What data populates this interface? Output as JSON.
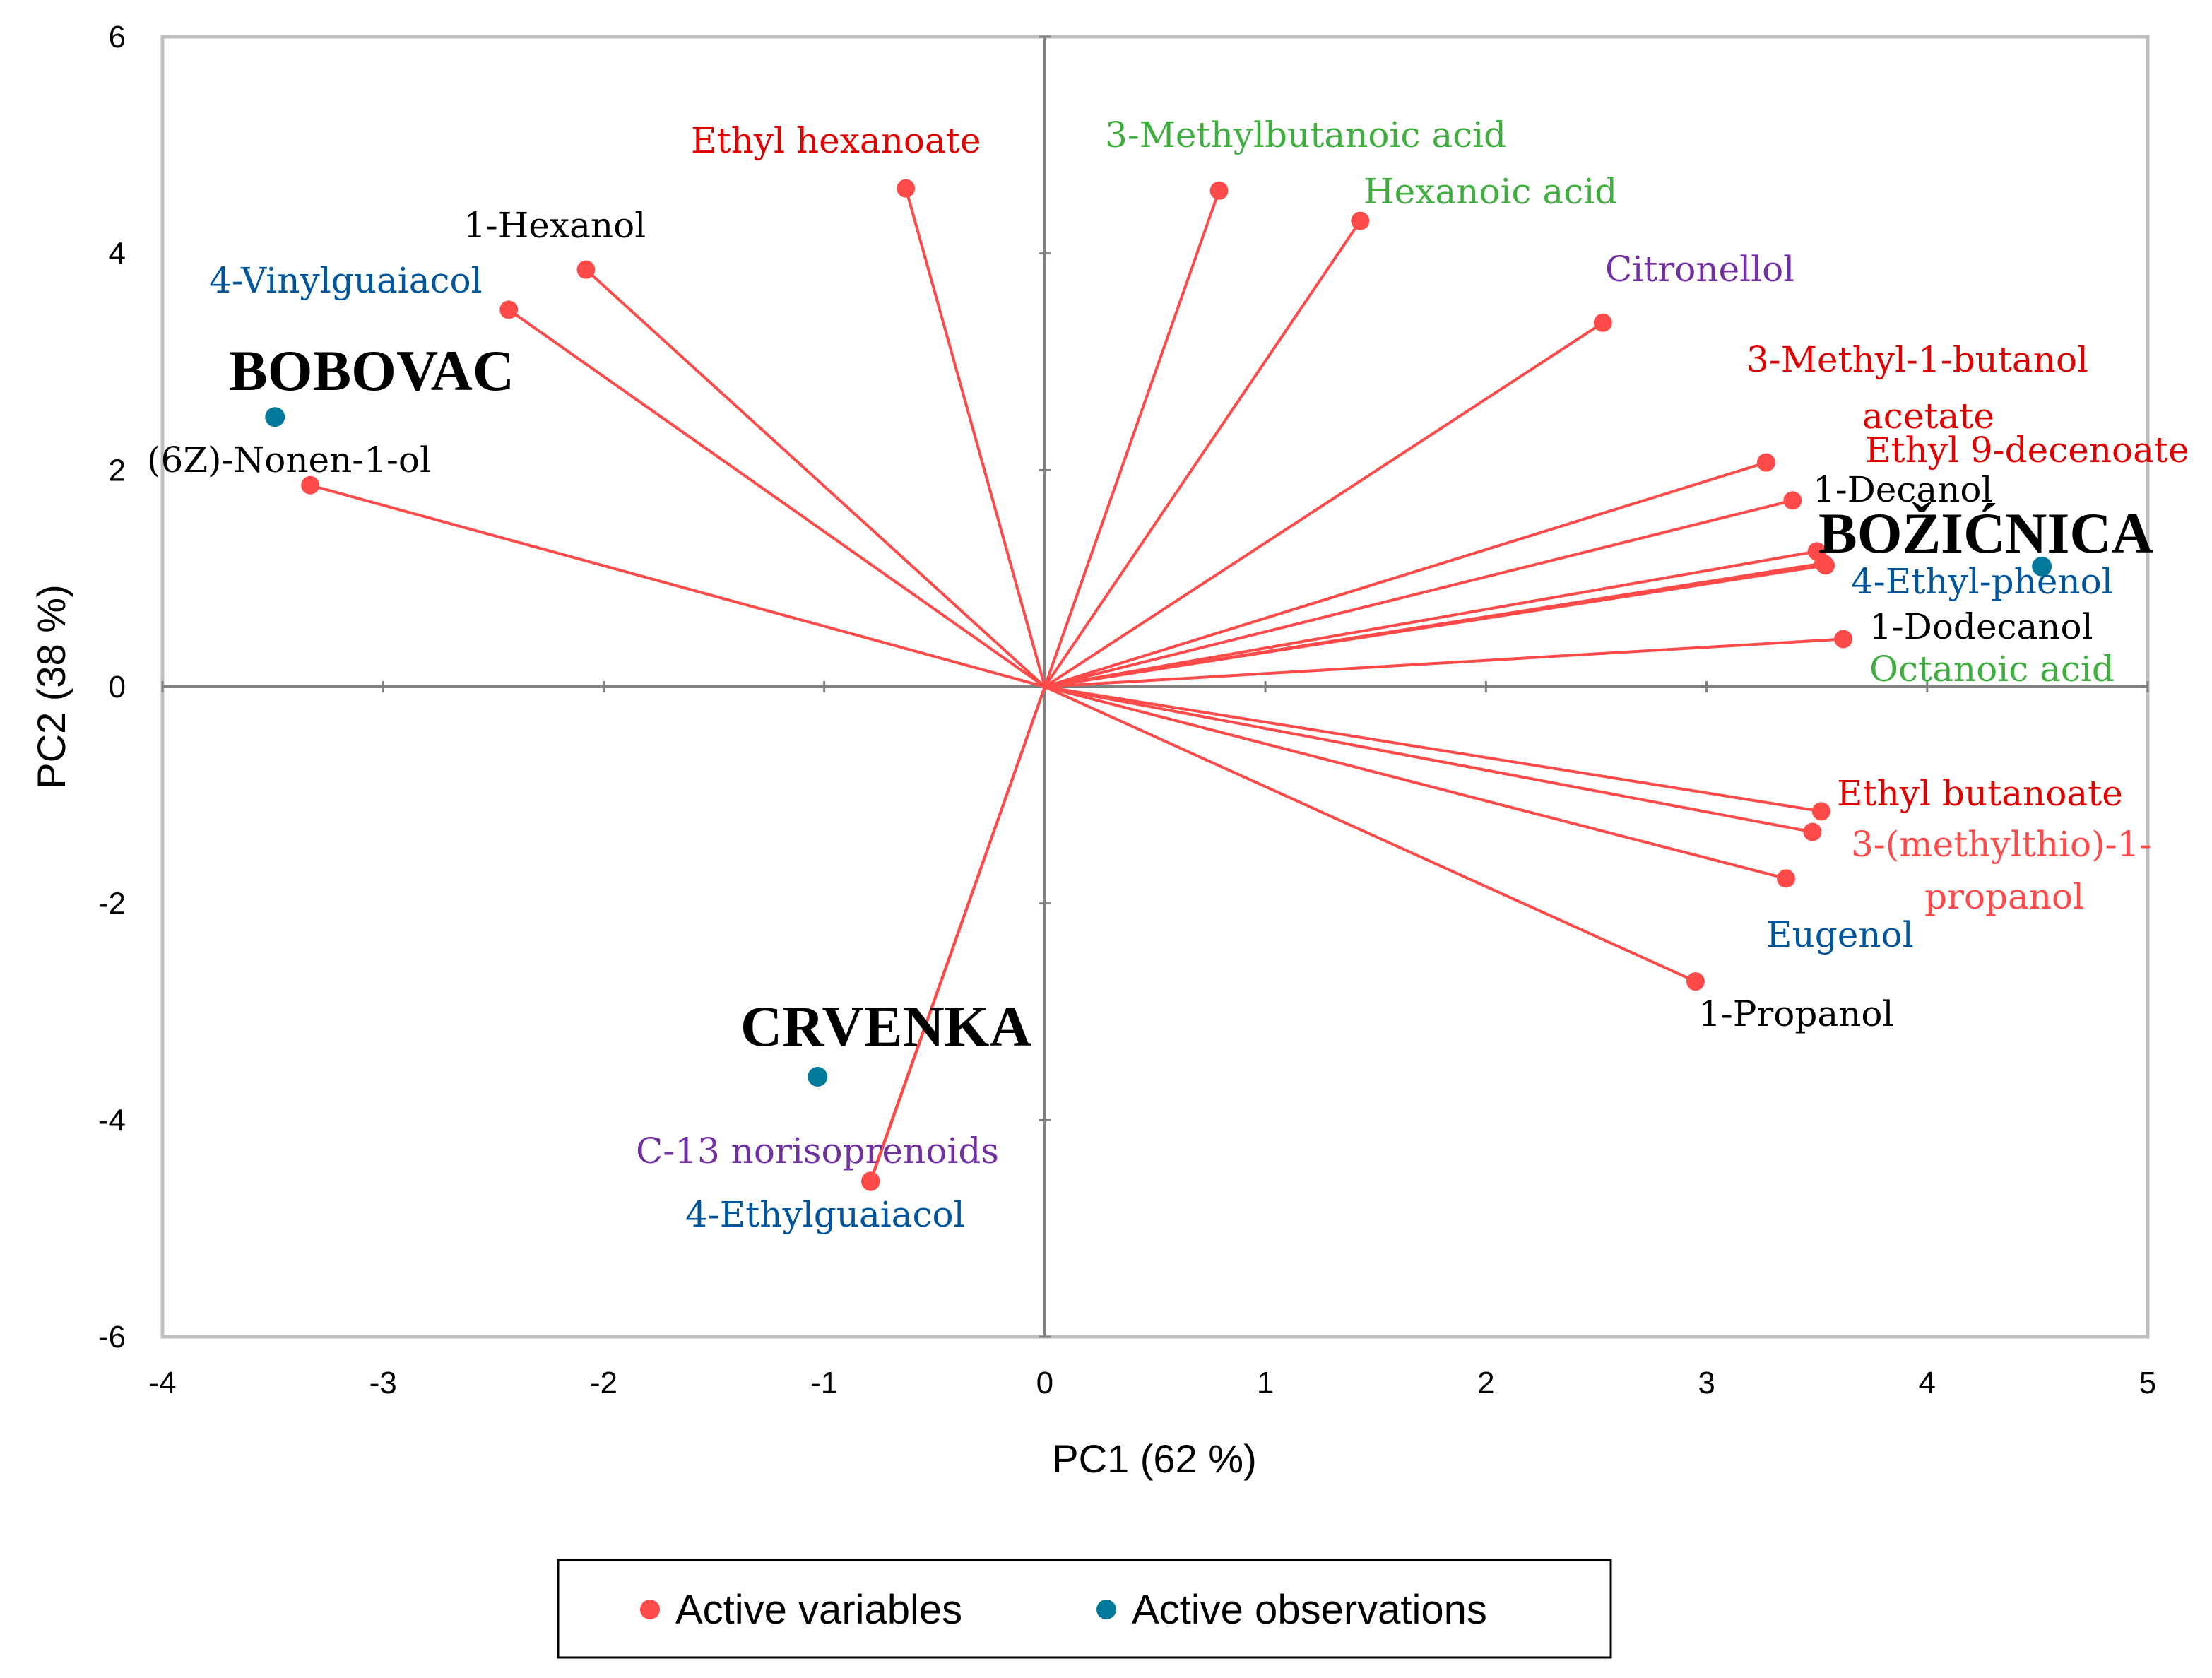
{
  "chart_data": {
    "type": "scatter",
    "subtype": "PCA biplot",
    "xlabel": "PC1 (62 %)",
    "ylabel": "PC2 (38 %)",
    "xlim": [
      -4,
      5
    ],
    "ylim": [
      -6,
      6
    ],
    "xticks": [
      "-4",
      "-3",
      "-2",
      "-1",
      "0",
      "1",
      "2",
      "3",
      "4",
      "5"
    ],
    "yticks": [
      "-6",
      "-4",
      "-2",
      "0",
      "2",
      "4",
      "6"
    ],
    "grid": false,
    "legend": {
      "placement": "bottom-center",
      "entries": [
        {
          "label": "Active variables",
          "color": "#ff4a4a"
        },
        {
          "label": "Active observations",
          "color": "#00799a"
        }
      ]
    },
    "colors": {
      "vector": "#ff4a4a",
      "observation": "#00799a",
      "axis": "#808080",
      "frame": "#bfbfbf"
    },
    "variables": [
      {
        "name": "Ethyl hexanoate",
        "x": -0.63,
        "y": 4.6,
        "label_color": "#e00000"
      },
      {
        "name": "1-Hexanol",
        "x": -2.08,
        "y": 3.85,
        "label_color": "#000000"
      },
      {
        "name": "4-Vinylguaiacol",
        "x": -2.43,
        "y": 3.48,
        "label_color": "#00569c"
      },
      {
        "name": "(6Z)-Nonen-1-ol",
        "x": -3.33,
        "y": 1.86,
        "label_color": "#000000"
      },
      {
        "name": "3-Methylbutanoic acid",
        "x": 0.79,
        "y": 4.58,
        "label_color": "#3fae3f"
      },
      {
        "name": "Hexanoic acid",
        "x": 1.43,
        "y": 4.3,
        "label_color": "#3fae3f"
      },
      {
        "name": "Citronellol",
        "x": 2.53,
        "y": 3.36,
        "label_color": "#7030a0"
      },
      {
        "name": "3-Methyl-1-butanol acetate",
        "label_lines": [
          "3-Methyl-1-butanol",
          "acetate"
        ],
        "x": 3.27,
        "y": 2.07,
        "label_color": "#e00000"
      },
      {
        "name": "Ethyl 9-decenoate",
        "x": 3.39,
        "y": 1.72,
        "label_color": "#e00000"
      },
      {
        "name": "1-Decanol",
        "x": 3.5,
        "y": 1.25,
        "label_color": "#000000"
      },
      {
        "name": "4-Ethyl-phenol",
        "x": 3.54,
        "y": 1.12,
        "label_color": "#00569c"
      },
      {
        "name": "1-Dodecanol",
        "x": 3.62,
        "y": 0.44,
        "label_color": "#000000"
      },
      {
        "name": "Octanoic acid",
        "x": 3.53,
        "y": 1.14,
        "label_color": "#3fae3f"
      },
      {
        "name": "Ethyl butanoate",
        "x": 3.52,
        "y": -1.15,
        "label_color": "#e00000"
      },
      {
        "name": "3-(methylthio)-1-propanol",
        "label_lines": [
          "3-(methylthio)-1-",
          "propanol"
        ],
        "x": 3.48,
        "y": -1.34,
        "label_color": "#ff4a4a"
      },
      {
        "name": "Eugenol",
        "x": 3.36,
        "y": -1.77,
        "label_color": "#00569c"
      },
      {
        "name": "1-Propanol",
        "x": 2.95,
        "y": -2.72,
        "label_color": "#000000"
      },
      {
        "name": "C-13 norisoprenoids",
        "x": -0.79,
        "y": -4.56,
        "label_color": "#7030a0"
      },
      {
        "name": "4-Ethylguaiacol",
        "x": -0.79,
        "y": -4.57,
        "label_color": "#00569c"
      }
    ],
    "observations": [
      {
        "name": "BOBOVAC",
        "x": -3.49,
        "y": 2.49
      },
      {
        "name": "BOŽIĆNICA",
        "x": 4.52,
        "y": 1.11
      },
      {
        "name": "CRVENKA",
        "x": -1.03,
        "y": -3.6
      }
    ]
  }
}
